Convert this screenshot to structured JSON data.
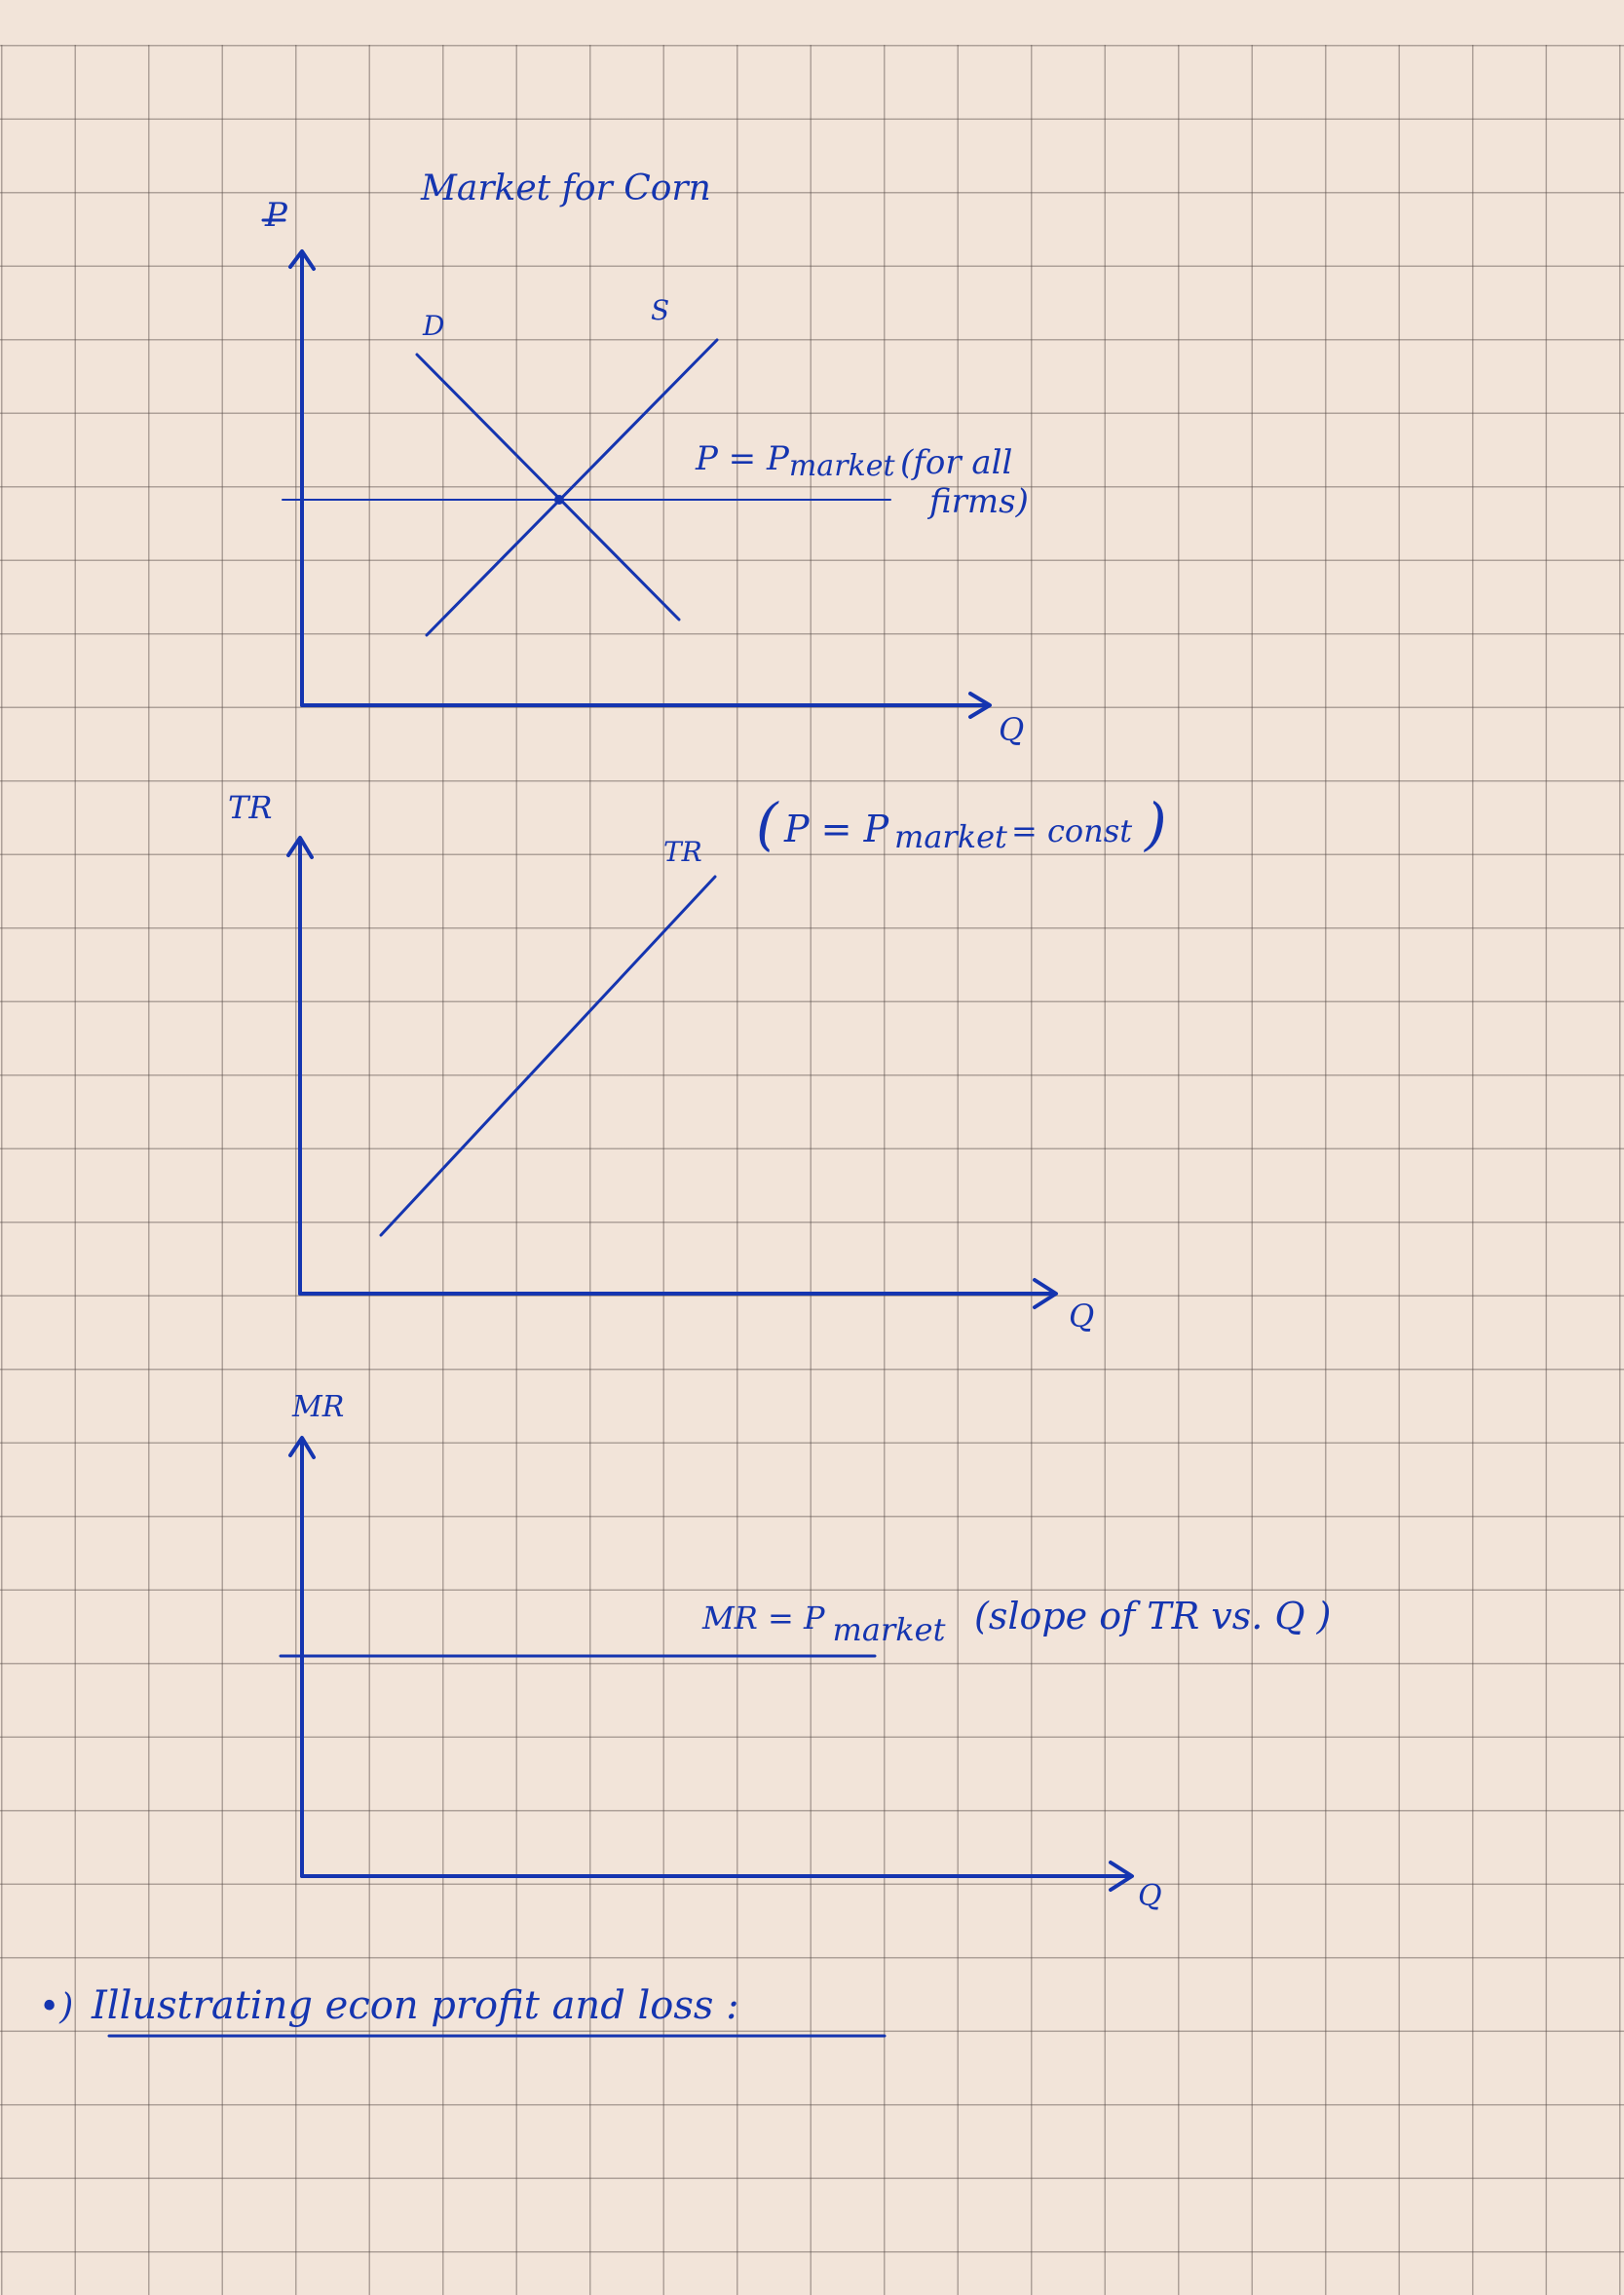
{
  "colors": {
    "paper": "#f2e4d9",
    "grid": "#5a504b",
    "ink": "#1535b0"
  },
  "diagram_market": {
    "title": "Market for Corn",
    "y_axis_label": "P",
    "x_axis_label": "Q",
    "demand_label": "D",
    "supply_label": "S",
    "price_line_label": "P = P",
    "price_line_label_sub": "market",
    "note_line1": "(for all",
    "note_line2": "firms)"
  },
  "diagram_tr": {
    "y_axis_label": "TR",
    "x_axis_label": "Q",
    "curve_label": "TR",
    "note_open": "(",
    "note_p1": "P = P",
    "note_market": "market",
    "note_const": "= const",
    "note_close": ")"
  },
  "diagram_mr": {
    "y_axis_label": "MR",
    "x_axis_label": "Q",
    "line_label": "MR = P",
    "line_label_sub": "market",
    "note": "(slope of TR vs. Q )"
  },
  "footer": {
    "bullet": "•)",
    "heading": "Illustrating econ profit and loss :"
  }
}
